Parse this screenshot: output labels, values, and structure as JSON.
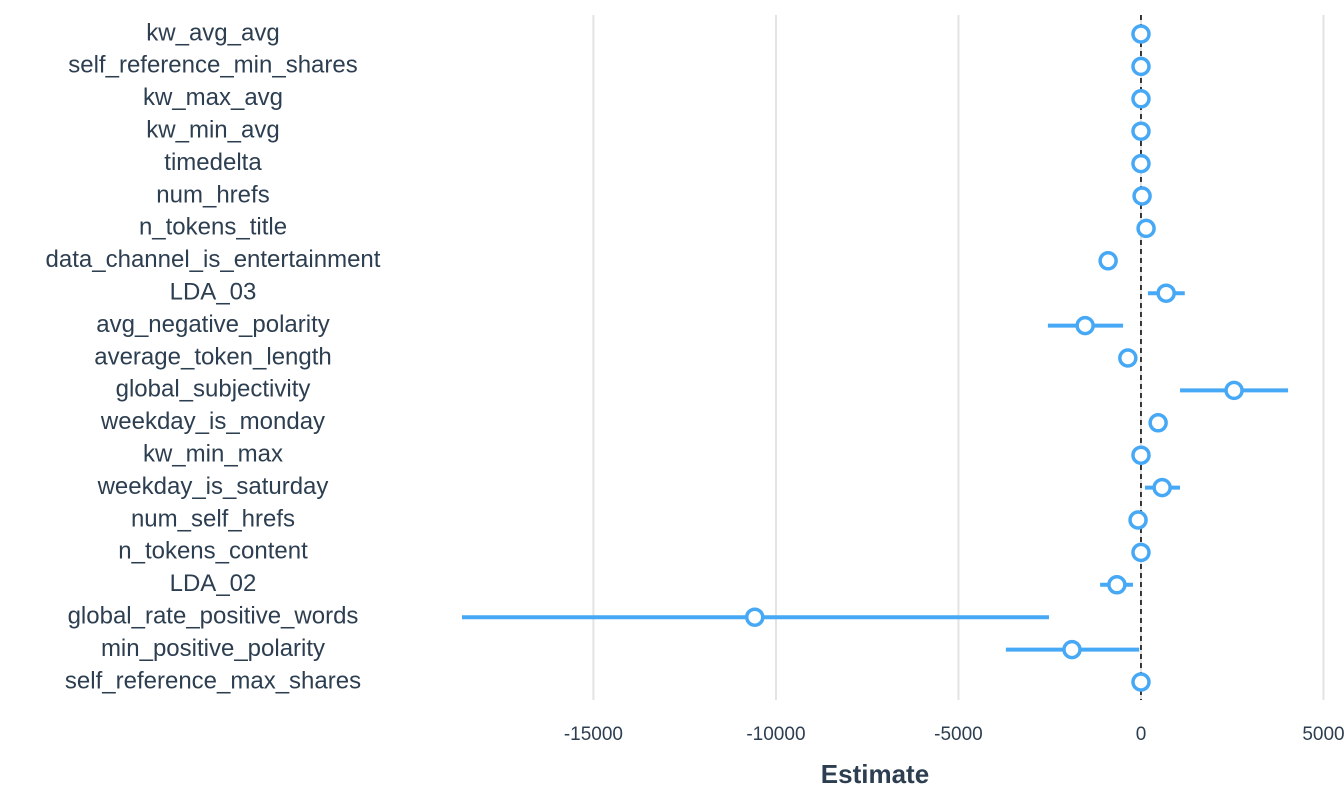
{
  "chart_data": {
    "type": "dotwhisker",
    "x_label": "Estimate",
    "categories": [
      "kw_avg_avg",
      "self_reference_min_shares",
      "kw_max_avg",
      "kw_min_avg",
      "timedelta",
      "num_hrefs",
      "n_tokens_title",
      "data_channel_is_entertainment",
      "LDA_03",
      "avg_negative_polarity",
      "average_token_length",
      "global_subjectivity",
      "weekday_is_monday",
      "kw_min_max",
      "weekday_is_saturday",
      "num_self_hrefs",
      "n_tokens_content",
      "LDA_02",
      "global_rate_positive_words",
      "min_positive_polarity",
      "self_reference_max_shares"
    ],
    "series": [
      {
        "color": "#47a9f5",
        "values": [
          0,
          0,
          0,
          0,
          0,
          30,
          140,
          -900,
          690,
          -1530,
          -360,
          2550,
          470,
          0,
          580,
          -80,
          0,
          -660,
          -10580,
          -1890,
          0
        ],
        "lower": [
          -50,
          -50,
          -50,
          -50,
          -50,
          -20,
          40,
          -1050,
          190,
          -2550,
          -480,
          1070,
          340,
          -50,
          110,
          -150,
          -50,
          -1120,
          -18600,
          -3700,
          -50
        ],
        "upper": [
          50,
          50,
          50,
          50,
          50,
          80,
          240,
          -750,
          1200,
          -490,
          -240,
          4030,
          600,
          50,
          1070,
          0,
          50,
          -220,
          -2520,
          -50,
          50
        ]
      }
    ],
    "xlim": [
      -18600,
      5500
    ],
    "xticks": [
      -15000,
      -10000,
      -5000,
      0,
      5000
    ],
    "grid": true,
    "reference_line": 0
  }
}
